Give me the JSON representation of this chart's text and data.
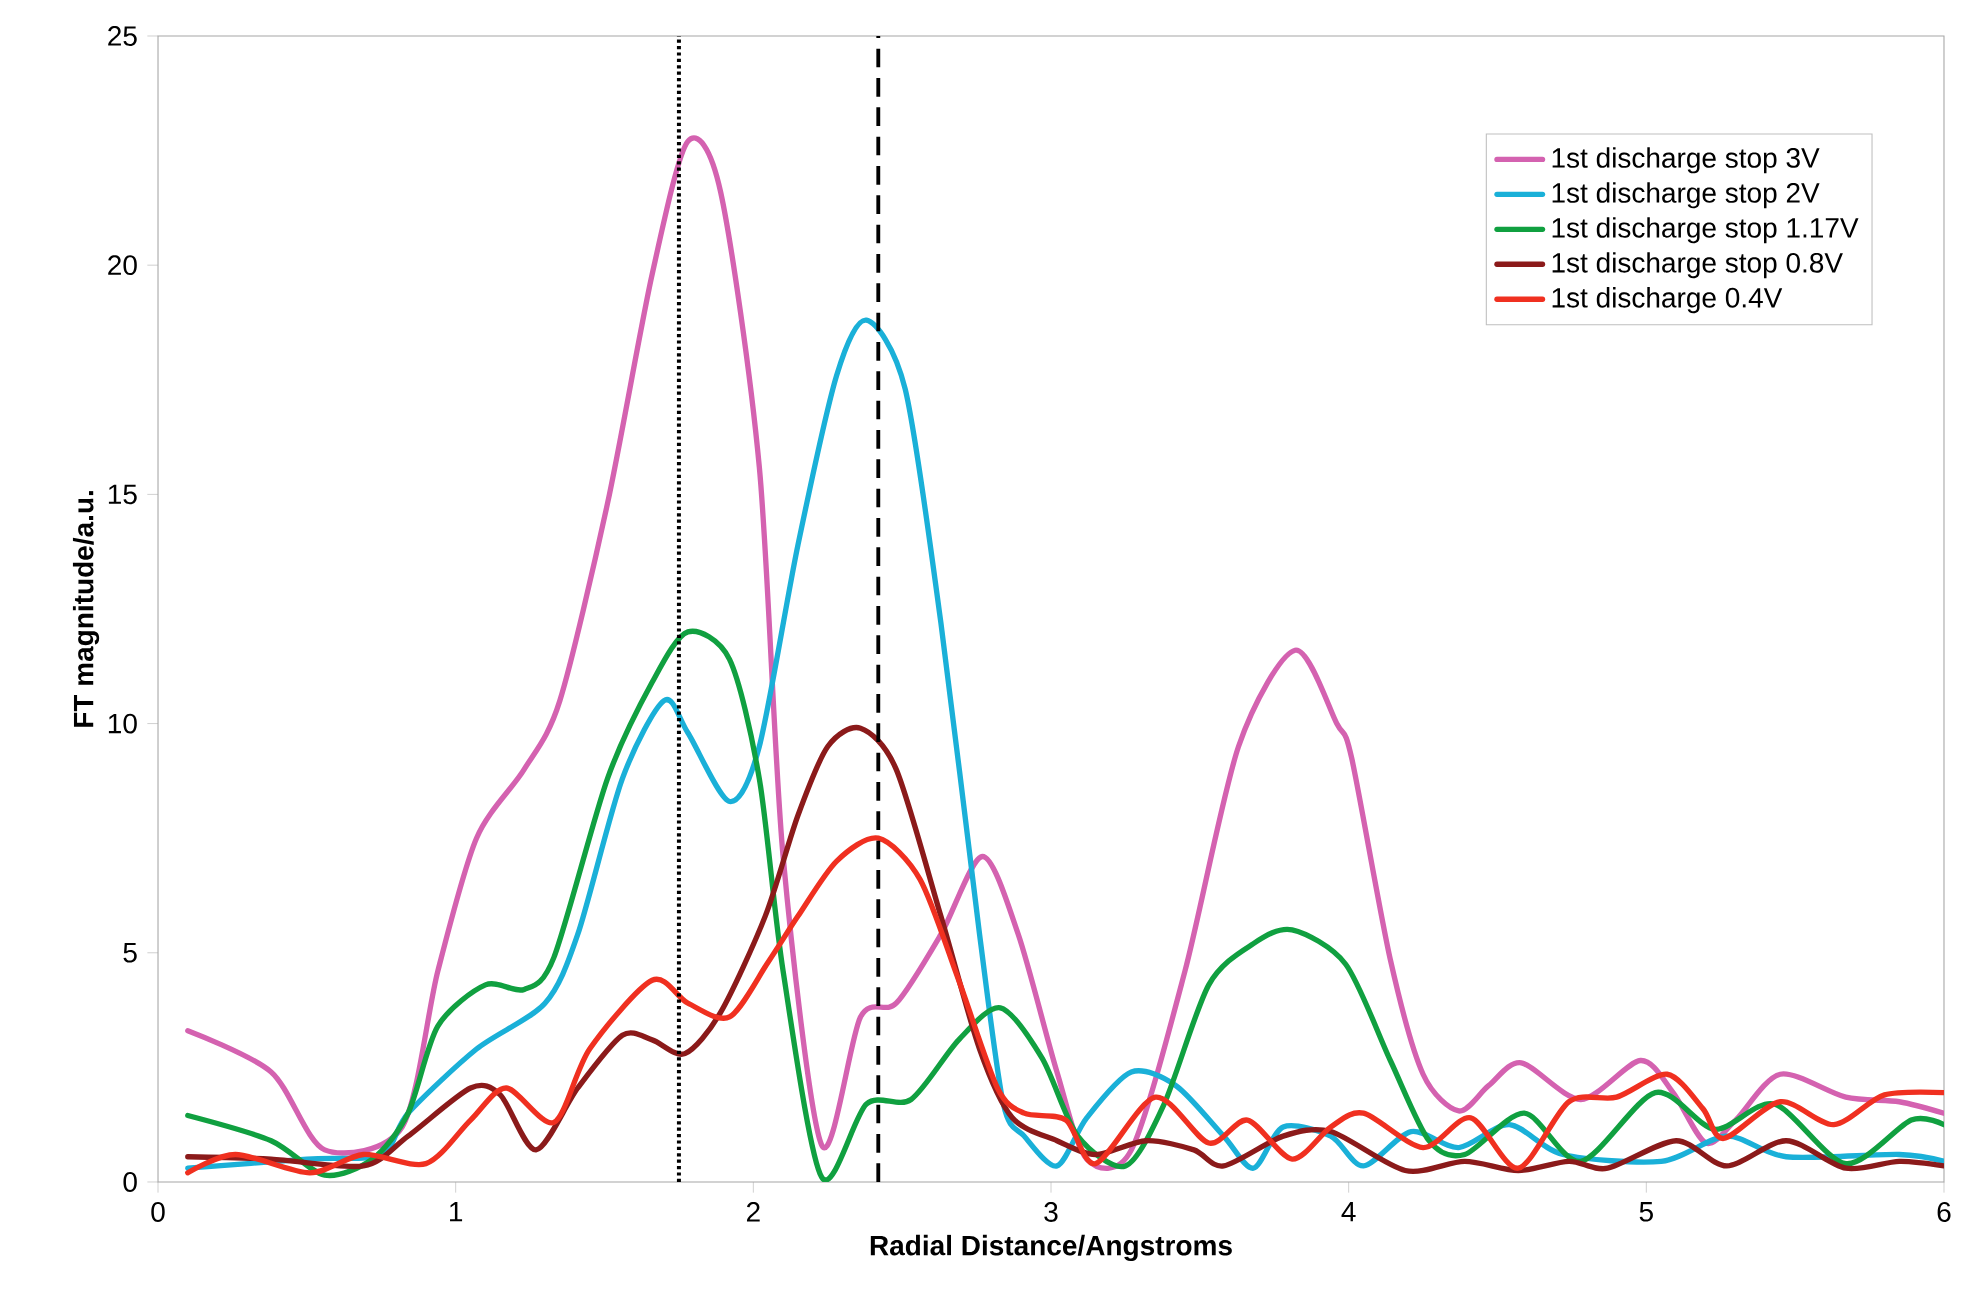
{
  "chart_data": {
    "type": "line",
    "xlabel": "Radial Distance/Angstroms",
    "ylabel": "FT magnitude/a.u.",
    "xlim": [
      0,
      6
    ],
    "ylim": [
      0,
      25
    ],
    "xticks": [
      0,
      1,
      2,
      3,
      4,
      5,
      6
    ],
    "yticks": [
      0,
      5,
      10,
      15,
      20,
      25
    ],
    "legend": "top right",
    "line_style": "solid",
    "marker": "none",
    "grid": false,
    "ref_lines": [
      {
        "axis": "x",
        "value": 1.75,
        "line_style": "dotted",
        "color": "#000000"
      },
      {
        "axis": "x",
        "value": 2.42,
        "line_style": "dashed",
        "color": "#000000"
      }
    ],
    "series": [
      {
        "name": "1st discharge stop 3V",
        "color": "#d462b0",
        "x": [
          0.1,
          0.38,
          0.56,
          0.82,
          0.94,
          1.07,
          1.23,
          1.35,
          1.51,
          1.66,
          1.78,
          1.89,
          2.02,
          2.1,
          2.23,
          2.36,
          2.48,
          2.63,
          2.77,
          2.89,
          3.02,
          3.12,
          3.27,
          3.45,
          3.63,
          3.82,
          3.96,
          4.01,
          4.14,
          4.25,
          4.37,
          4.47,
          4.58,
          4.78,
          4.98,
          5.09,
          5.2,
          5.3,
          5.45,
          5.67,
          5.85,
          6.0
        ],
        "values": [
          3.3,
          2.4,
          0.7,
          1.2,
          4.6,
          7.5,
          9.0,
          10.5,
          14.8,
          19.8,
          22.7,
          21.6,
          15.6,
          7.1,
          0.8,
          3.6,
          3.9,
          5.4,
          7.1,
          5.4,
          2.4,
          0.5,
          0.7,
          4.6,
          9.5,
          11.6,
          10.0,
          9.25,
          4.85,
          2.35,
          1.55,
          2.1,
          2.6,
          1.8,
          2.65,
          1.95,
          0.85,
          1.35,
          2.35,
          1.85,
          1.75,
          1.5
        ]
      },
      {
        "name": "1st discharge stop 2V",
        "color": "#1ab0d8",
        "x": [
          0.1,
          0.5,
          0.75,
          0.84,
          1.07,
          1.3,
          1.41,
          1.56,
          1.7,
          1.78,
          1.92,
          2.02,
          2.15,
          2.28,
          2.38,
          2.51,
          2.63,
          2.76,
          2.84,
          2.91,
          3.02,
          3.12,
          3.27,
          3.42,
          3.58,
          3.68,
          3.78,
          3.94,
          4.05,
          4.21,
          4.37,
          4.54,
          4.72,
          5.05,
          5.27,
          5.47,
          5.85,
          6.0
        ],
        "values": [
          0.3,
          0.5,
          0.6,
          1.5,
          2.9,
          3.9,
          5.4,
          8.8,
          10.5,
          9.8,
          8.3,
          9.5,
          13.9,
          17.6,
          18.8,
          17.3,
          12.2,
          5.4,
          1.7,
          1.0,
          0.35,
          1.4,
          2.4,
          2.1,
          1.0,
          0.3,
          1.2,
          1.0,
          0.35,
          1.1,
          0.75,
          1.25,
          0.6,
          0.45,
          1.0,
          0.55,
          0.6,
          0.45
        ]
      },
      {
        "name": "1st discharge stop 1.17V",
        "color": "#10a040",
        "x": [
          0.1,
          0.38,
          0.56,
          0.72,
          0.84,
          0.94,
          1.1,
          1.23,
          1.33,
          1.51,
          1.66,
          1.78,
          1.92,
          2.02,
          2.1,
          2.23,
          2.38,
          2.53,
          2.69,
          2.83,
          2.97,
          3.09,
          3.25,
          3.38,
          3.53,
          3.68,
          3.81,
          3.99,
          4.14,
          4.27,
          4.39,
          4.59,
          4.78,
          5.03,
          5.23,
          5.43,
          5.67,
          5.89,
          6.0
        ],
        "values": [
          1.45,
          0.9,
          0.15,
          0.5,
          1.5,
          3.4,
          4.3,
          4.2,
          4.9,
          8.8,
          10.9,
          12.0,
          11.4,
          8.8,
          4.6,
          0.1,
          1.7,
          1.8,
          3.1,
          3.8,
          2.7,
          1.0,
          0.35,
          1.7,
          4.3,
          5.2,
          5.5,
          4.75,
          2.65,
          0.9,
          0.6,
          1.5,
          0.45,
          1.95,
          1.15,
          1.7,
          0.4,
          1.35,
          1.25
        ]
      },
      {
        "name": "1st discharge stop 0.8V",
        "color": "#8b1a1a",
        "x": [
          0.1,
          0.38,
          0.69,
          0.84,
          1.05,
          1.15,
          1.27,
          1.41,
          1.56,
          1.66,
          1.77,
          1.89,
          2.04,
          2.15,
          2.25,
          2.36,
          2.48,
          2.63,
          2.76,
          2.87,
          3.02,
          3.15,
          3.32,
          3.48,
          3.58,
          3.78,
          3.94,
          4.19,
          4.39,
          4.57,
          4.74,
          4.87,
          5.1,
          5.27,
          5.47,
          5.67,
          5.85,
          6.0
        ],
        "values": [
          0.55,
          0.5,
          0.35,
          1.0,
          2.05,
          1.9,
          0.7,
          2.05,
          3.2,
          3.1,
          2.8,
          3.7,
          5.8,
          8.0,
          9.5,
          9.9,
          9.0,
          5.8,
          2.9,
          1.4,
          0.9,
          0.6,
          0.9,
          0.7,
          0.35,
          1.0,
          1.1,
          0.25,
          0.45,
          0.25,
          0.45,
          0.3,
          0.9,
          0.35,
          0.9,
          0.3,
          0.45,
          0.35
        ]
      },
      {
        "name": "1st discharge 0.4V",
        "color": "#f03020",
        "x": [
          0.1,
          0.26,
          0.51,
          0.69,
          0.9,
          1.05,
          1.17,
          1.33,
          1.45,
          1.66,
          1.78,
          1.92,
          2.05,
          2.15,
          2.28,
          2.42,
          2.56,
          2.69,
          2.82,
          2.91,
          3.05,
          3.15,
          3.35,
          3.53,
          3.66,
          3.81,
          3.94,
          4.05,
          4.25,
          4.41,
          4.57,
          4.74,
          4.9,
          5.07,
          5.19,
          5.26,
          5.45,
          5.63,
          5.8,
          6.0
        ],
        "values": [
          0.2,
          0.6,
          0.2,
          0.6,
          0.4,
          1.35,
          2.05,
          1.3,
          2.9,
          4.4,
          3.9,
          3.6,
          4.8,
          5.8,
          7.0,
          7.5,
          6.6,
          4.4,
          2.05,
          1.5,
          1.35,
          0.4,
          1.85,
          0.85,
          1.35,
          0.5,
          1.2,
          1.5,
          0.75,
          1.4,
          0.3,
          1.75,
          1.85,
          2.35,
          1.6,
          0.95,
          1.75,
          1.25,
          1.9,
          1.95
        ]
      }
    ]
  }
}
